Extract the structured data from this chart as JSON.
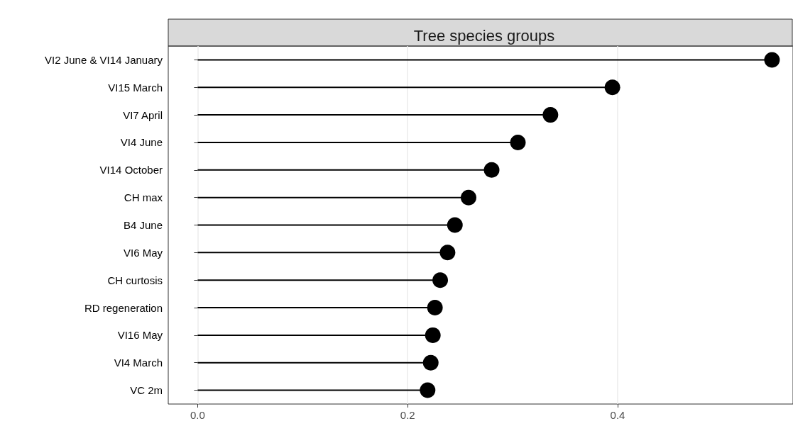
{
  "chart_data": {
    "type": "lollipop",
    "title": "Tree species groups",
    "orientation": "horizontal",
    "categories": [
      "VI2 June & VI14 January",
      "VI15 March",
      "VI7 April",
      "VI4 June",
      "VI14 October",
      "CH max",
      "B4 June",
      "VI6 May",
      "CH curtosis",
      "RD regeneration",
      "VI16 May",
      "VI4 March",
      "VC 2m"
    ],
    "values": [
      0.547,
      0.395,
      0.336,
      0.305,
      0.28,
      0.258,
      0.245,
      0.238,
      0.231,
      0.226,
      0.224,
      0.222,
      0.219
    ],
    "color": "#000000",
    "xlim": [
      -0.028,
      0.567
    ],
    "xticks": [
      {
        "value": 0,
        "label": "0.0"
      },
      0.2,
      0.4
    ],
    "grid": "x",
    "marker": "circle"
  }
}
